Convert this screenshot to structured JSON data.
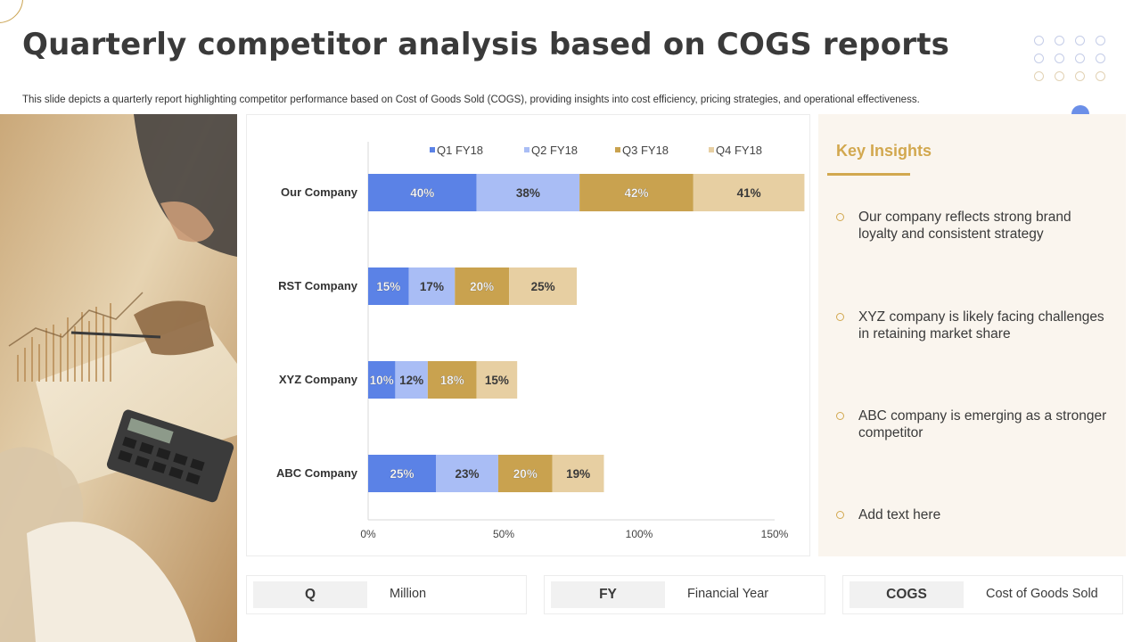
{
  "page": {
    "title": "Quarterly competitor analysis based on COGS reports",
    "subtitle": "This slide depicts a quarterly report highlighting competitor performance based on Cost of Goods Sold (COGS), providing insights into cost efficiency, pricing strategies, and   operational effectiveness."
  },
  "colors": {
    "q1": "#5b82e6",
    "q2": "#a9bdf5",
    "q3": "#c9a24f",
    "q4": "#e7cfa2",
    "accent": "#d2a84f",
    "insights_bg": "#faf5ee"
  },
  "chart_data": {
    "type": "bar",
    "orientation": "horizontal",
    "stacked": true,
    "categories": [
      "Our Company",
      "RST Company",
      "XYZ Company",
      "ABC Company"
    ],
    "series": [
      {
        "name": "Q1 FY18",
        "values": [
          40,
          15,
          10,
          25
        ],
        "labels": [
          "40%",
          "15%",
          "10%",
          "25%"
        ]
      },
      {
        "name": "Q2 FY18",
        "values": [
          38,
          17,
          12,
          23
        ],
        "labels": [
          "38%",
          "17%",
          "12%",
          "23%"
        ]
      },
      {
        "name": "Q3 FY18",
        "values": [
          42,
          20,
          18,
          20
        ],
        "labels": [
          "42%",
          "20%",
          "18%",
          "20%"
        ]
      },
      {
        "name": "Q4 FY18",
        "values": [
          41,
          25,
          15,
          19
        ],
        "labels": [
          "41%",
          "25%",
          "15%",
          "19%"
        ]
      }
    ],
    "xlim": [
      0,
      150
    ],
    "x_ticks": [
      0,
      50,
      100,
      150
    ],
    "x_tick_labels": [
      "0%",
      "50%",
      "100%",
      "150%"
    ],
    "legend_position": "top",
    "grid": false
  },
  "insights": {
    "title": "Key Insights",
    "items": [
      "Our company reflects strong brand loyalty and consistent strategy",
      "XYZ company is likely facing challenges in retaining market share",
      "ABC company is emerging as a stronger competitor",
      "Add text here"
    ]
  },
  "abbreviations": [
    {
      "abbr": "Q",
      "full": "Million"
    },
    {
      "abbr": "FY",
      "full": "Financial Year"
    },
    {
      "abbr": "COGS",
      "full": "Cost of Goods Sold"
    }
  ]
}
